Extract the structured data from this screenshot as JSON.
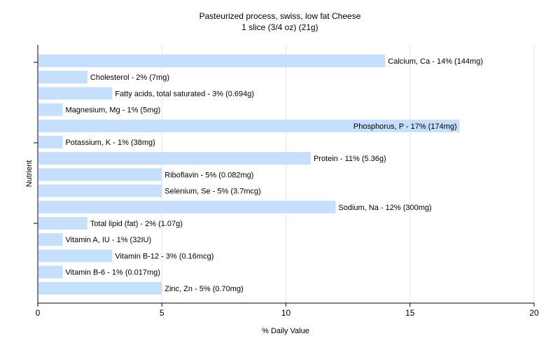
{
  "chart_data": {
    "type": "bar",
    "orientation": "horizontal",
    "title": "Pasteurized process, swiss, low fat Cheese",
    "subtitle": "1 slice (3/4 oz) (21g)",
    "xlabel": "% Daily Value",
    "ylabel": "Nutrient",
    "xlim": [
      0,
      20
    ],
    "xticks": [
      0,
      5,
      10,
      15,
      20
    ],
    "grid": "vertical",
    "bar_color": "#c5dffc",
    "categories": [
      "Calcium, Ca",
      "Cholesterol",
      "Fatty acids, total saturated",
      "Magnesium, Mg",
      "Phosphorus, P",
      "Potassium, K",
      "Protein",
      "Riboflavin",
      "Selenium, Se",
      "Sodium, Na",
      "Total lipid (fat)",
      "Vitamin A, IU",
      "Vitamin B-12",
      "Vitamin B-6",
      "Zinc, Zn"
    ],
    "values": [
      14,
      2,
      3,
      1,
      17,
      1,
      11,
      5,
      5,
      12,
      2,
      1,
      3,
      1,
      5
    ],
    "labels": [
      "Calcium, Ca - 14% (144mg)",
      "Cholesterol - 2% (7mg)",
      "Fatty acids, total saturated - 3% (0.694g)",
      "Magnesium, Mg - 1% (5mg)",
      "Phosphorus, P - 17% (174mg)",
      "Potassium, K - 1% (38mg)",
      "Protein - 11% (5.36g)",
      "Riboflavin - 5% (0.082mg)",
      "Selenium, Se - 5% (3.7mcg)",
      "Sodium, Na - 12% (300mg)",
      "Total lipid (fat) - 2% (1.07g)",
      "Vitamin A, IU - 1% (32IU)",
      "Vitamin B-12 - 3% (0.16mcg)",
      "Vitamin B-6 - 1% (0.017mg)",
      "Zinc, Zn - 5% (0.70mg)"
    ]
  }
}
